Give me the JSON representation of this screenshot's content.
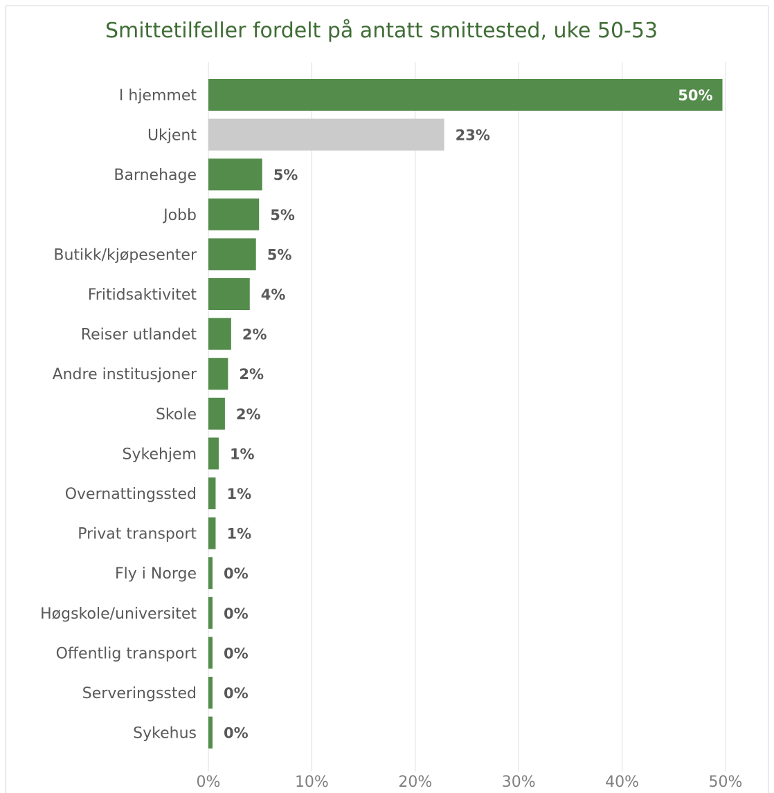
{
  "chart_data": {
    "type": "bar",
    "orientation": "horizontal",
    "title": "Smittetilfeller fordelt på antatt smittested, uke 50-53",
    "xlabel": "",
    "ylabel": "",
    "xlim": [
      0,
      50
    ],
    "x_ticks": [
      "0%",
      "10%",
      "20%",
      "30%",
      "40%",
      "50%"
    ],
    "x_tick_values": [
      0,
      10,
      20,
      30,
      40,
      50
    ],
    "grid": true,
    "legend": "none",
    "colors": {
      "bar": "#548c4b",
      "highlight": "#cbcbcb",
      "title": "#3f6d35",
      "grid": "#e2e2e2"
    },
    "categories": [
      "I hjemmet",
      "Ukjent",
      "Barnehage",
      "Jobb",
      "Butikk/kjøpesenter",
      "Fritidsaktivitet",
      "Reiser utlandet",
      "Andre institusjoner",
      "Skole",
      "Sykehjem",
      "Overnattingssted",
      "Privat transport",
      "Fly i Norge",
      "Høgskole/universitet",
      "Offentlig transport",
      "Serveringssted",
      "Sykehus"
    ],
    "values": [
      49.7,
      22.8,
      5.2,
      4.9,
      4.6,
      4.0,
      2.2,
      1.9,
      1.6,
      1.0,
      0.7,
      0.7,
      0.4,
      0.4,
      0.4,
      0.4,
      0.4
    ],
    "labels": [
      "50%",
      "23%",
      "5%",
      "5%",
      "5%",
      "4%",
      "2%",
      "2%",
      "2%",
      "1%",
      "1%",
      "1%",
      "0%",
      "0%",
      "0%",
      "0%",
      "0%"
    ],
    "highlight_index": 1
  }
}
